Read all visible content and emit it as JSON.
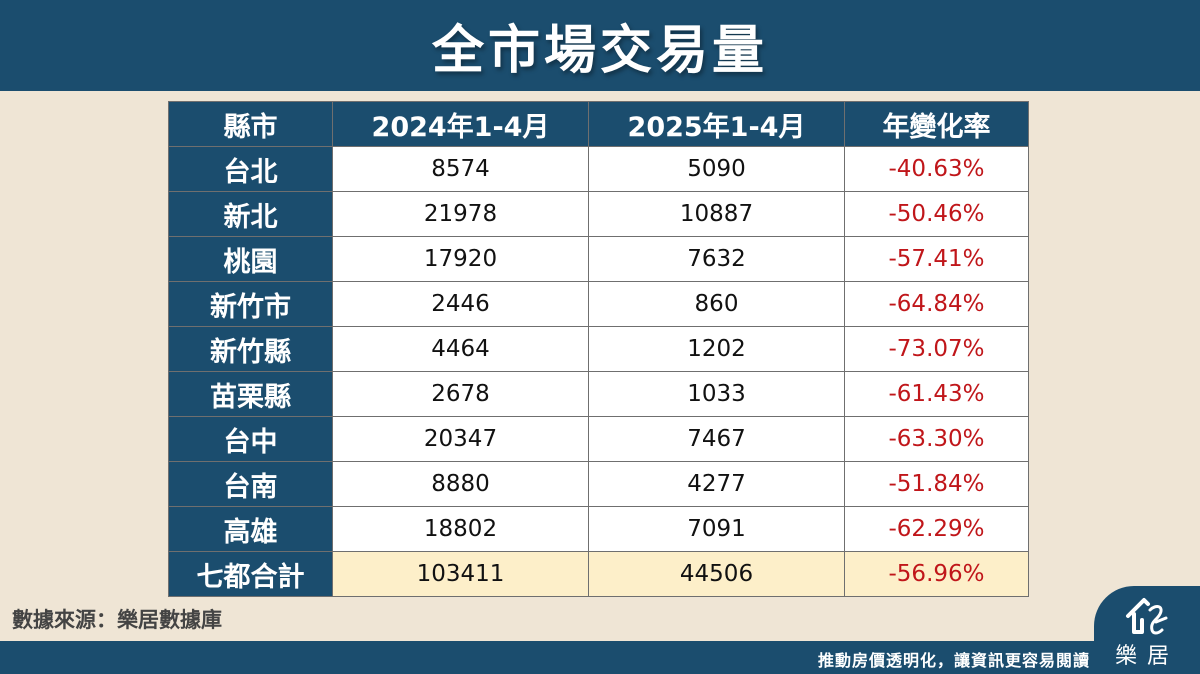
{
  "header": {
    "title": "全市場交易量"
  },
  "table": {
    "headers": [
      "縣市",
      "2024年1-4月",
      "2025年1-4月",
      "年變化率"
    ],
    "rows": [
      {
        "city": "台北",
        "y2024": "8574",
        "y2025": "5090",
        "rate": "-40.63%"
      },
      {
        "city": "新北",
        "y2024": "21978",
        "y2025": "10887",
        "rate": "-50.46%"
      },
      {
        "city": "桃園",
        "y2024": "17920",
        "y2025": "7632",
        "rate": "-57.41%"
      },
      {
        "city": "新竹市",
        "y2024": "2446",
        "y2025": "860",
        "rate": "-64.84%"
      },
      {
        "city": "新竹縣",
        "y2024": "4464",
        "y2025": "1202",
        "rate": "-73.07%"
      },
      {
        "city": "苗栗縣",
        "y2024": "2678",
        "y2025": "1033",
        "rate": "-61.43%"
      },
      {
        "city": "台中",
        "y2024": "20347",
        "y2025": "7467",
        "rate": "-63.30%"
      },
      {
        "city": "台南",
        "y2024": "8880",
        "y2025": "4277",
        "rate": "-51.84%"
      },
      {
        "city": "高雄",
        "y2024": "18802",
        "y2025": "7091",
        "rate": "-62.29%"
      }
    ],
    "total": {
      "city": "七都合計",
      "y2024": "103411",
      "y2025": "44506",
      "rate": "-56.96%"
    }
  },
  "footer": {
    "source": "數據來源：樂居數據庫",
    "slogan": "推動房價透明化，讓資訊更容易閱讀",
    "logo_text": "樂居"
  },
  "colors": {
    "primary": "#1b4d6e",
    "background": "#efe5d5",
    "negative": "#c0161a",
    "total_highlight": "#fdefc9"
  }
}
